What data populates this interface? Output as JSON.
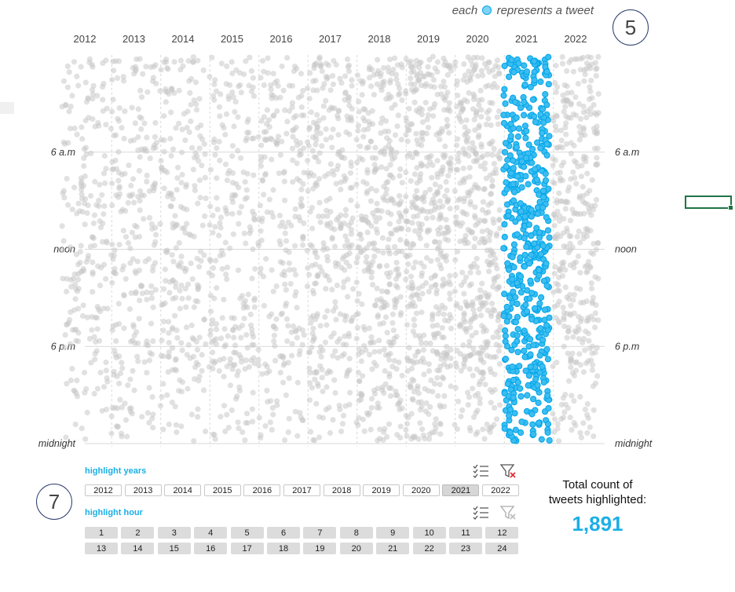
{
  "legend_note": {
    "prefix": "each",
    "suffix": "represents a tweet"
  },
  "steps": {
    "chart_step": "5",
    "slicer_step": "7"
  },
  "colors": {
    "highlight": "#00a6ea",
    "highlight_fill": "#3dbdf0",
    "muted": "#c8c8c8",
    "accent_text": "#1bafe5"
  },
  "chart_data": {
    "type": "scatter",
    "x_categories": [
      "2012",
      "2013",
      "2014",
      "2015",
      "2016",
      "2017",
      "2018",
      "2019",
      "2020",
      "2021",
      "2022"
    ],
    "y_axis": {
      "ticks": [
        0,
        6,
        12,
        18,
        24
      ],
      "tick_labels": [
        "",
        "6 a.m",
        "noon",
        "6 p.m",
        "midnight"
      ],
      "reversed": true,
      "unit": "hour of day"
    },
    "highlighted_year": "2021",
    "relative_density": {
      "2012": 0.4,
      "2013": 0.45,
      "2014": 0.45,
      "2015": 0.45,
      "2016": 0.45,
      "2017": 0.6,
      "2018": 0.7,
      "2019": 0.85,
      "2020": 0.8,
      "2021": 1.0,
      "2022": 0.7
    },
    "grid": "horizontal solid, vertical dashed",
    "legend": "top-right"
  },
  "years_slicer": {
    "title": "highlight years",
    "options": [
      "2012",
      "2013",
      "2014",
      "2015",
      "2016",
      "2017",
      "2018",
      "2019",
      "2020",
      "2021",
      "2022"
    ],
    "selected": "2021"
  },
  "hours_slicer": {
    "title": "highlight hour",
    "row1": [
      "1",
      "2",
      "3",
      "4",
      "5",
      "6",
      "7",
      "8",
      "9",
      "10",
      "11",
      "12"
    ],
    "row2": [
      "13",
      "14",
      "15",
      "16",
      "17",
      "18",
      "19",
      "20",
      "21",
      "22",
      "23",
      "24"
    ]
  },
  "icons": {
    "multi_select": "multi-select-icon",
    "clear_filter": "clear-filter-icon"
  },
  "total": {
    "label_line1": "Total count of",
    "label_line2": "tweets highlighted:",
    "value": "1,891"
  }
}
